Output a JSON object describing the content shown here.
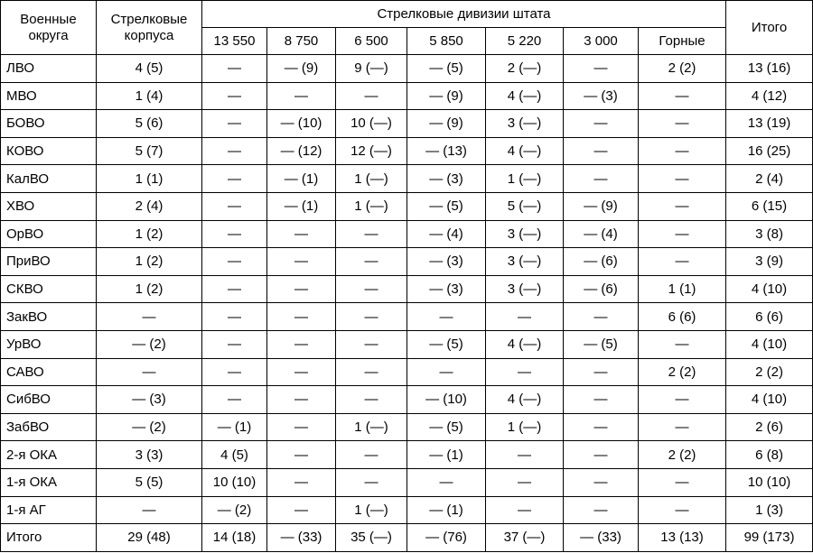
{
  "header": {
    "district": "Военные округа",
    "corps": "Стрелковые корпуса",
    "divisions_group": "Стрелковые дивизии штата",
    "division_states": [
      "13 550",
      "8 750",
      "6 500",
      "5 850",
      "5 220",
      "3 000",
      "Горные"
    ],
    "total": "Итого"
  },
  "rows": [
    {
      "name": "ЛВО",
      "cells": [
        "4 (5)",
        "—",
        "— (9)",
        "9 (—)",
        "— (5)",
        "2 (—)",
        "—",
        "2 (2)",
        "13 (16)"
      ]
    },
    {
      "name": "МВО",
      "cells": [
        "1 (4)",
        "—",
        "—",
        "—",
        "— (9)",
        "4 (—)",
        "— (3)",
        "—",
        "4 (12)"
      ]
    },
    {
      "name": "БОВО",
      "cells": [
        "5 (6)",
        "—",
        "— (10)",
        "10 (—)",
        "— (9)",
        "3 (—)",
        "—",
        "—",
        "13 (19)"
      ]
    },
    {
      "name": "КОВО",
      "cells": [
        "5 (7)",
        "—",
        "— (12)",
        "12 (—)",
        "— (13)",
        "4 (—)",
        "—",
        "—",
        "16 (25)"
      ]
    },
    {
      "name": "КалВО",
      "cells": [
        "1 (1)",
        "—",
        "— (1)",
        "1 (—)",
        "— (3)",
        "1 (—)",
        "—",
        "—",
        "2 (4)"
      ]
    },
    {
      "name": "ХВО",
      "cells": [
        "2 (4)",
        "—",
        "— (1)",
        "1 (—)",
        "— (5)",
        "5 (—)",
        "— (9)",
        "—",
        "6 (15)"
      ]
    },
    {
      "name": "ОрВО",
      "cells": [
        "1 (2)",
        "—",
        "—",
        "—",
        "— (4)",
        "3 (—)",
        "— (4)",
        "—",
        "3 (8)"
      ]
    },
    {
      "name": "ПриВО",
      "cells": [
        "1 (2)",
        "—",
        "—",
        "—",
        "— (3)",
        "3 (—)",
        "— (6)",
        "—",
        "3 (9)"
      ]
    },
    {
      "name": "СКВО",
      "cells": [
        "1 (2)",
        "—",
        "—",
        "—",
        "— (3)",
        "3 (—)",
        "— (6)",
        "1 (1)",
        "4 (10)"
      ]
    },
    {
      "name": "ЗакВО",
      "cells": [
        "—",
        "—",
        "—",
        "—",
        "—",
        "—",
        "—",
        "6 (6)",
        "6 (6)"
      ]
    },
    {
      "name": "УрВО",
      "cells": [
        "— (2)",
        "—",
        "—",
        "—",
        "— (5)",
        "4 (—)",
        "— (5)",
        "—",
        "4 (10)"
      ]
    },
    {
      "name": "САВО",
      "cells": [
        "—",
        "—",
        "—",
        "—",
        "—",
        "—",
        "—",
        "2 (2)",
        "2 (2)"
      ]
    },
    {
      "name": "СибВО",
      "cells": [
        "— (3)",
        "—",
        "—",
        "—",
        "— (10)",
        "4 (—)",
        "—",
        "—",
        "4 (10)"
      ]
    },
    {
      "name": "ЗабВО",
      "cells": [
        "— (2)",
        "— (1)",
        "—",
        "1 (—)",
        "— (5)",
        "1 (—)",
        "—",
        "—",
        "2 (6)"
      ]
    },
    {
      "name": "2-я ОКА",
      "cells": [
        "3 (3)",
        "4 (5)",
        "—",
        "—",
        "— (1)",
        "—",
        "—",
        "2 (2)",
        "6 (8)"
      ]
    },
    {
      "name": "1-я ОКА",
      "cells": [
        "5 (5)",
        "10 (10)",
        "—",
        "—",
        "—",
        "—",
        "—",
        "—",
        "10 (10)"
      ]
    },
    {
      "name": "1-я АГ",
      "cells": [
        "—",
        "— (2)",
        "—",
        "1 (—)",
        "— (1)",
        "—",
        "—",
        "—",
        "1 (3)"
      ]
    },
    {
      "name": "Итого",
      "cells": [
        "29 (48)",
        "14 (18)",
        "— (33)",
        "35 (—)",
        "— (76)",
        "37 (—)",
        "— (33)",
        "13 (13)",
        "99 (173)"
      ]
    }
  ]
}
